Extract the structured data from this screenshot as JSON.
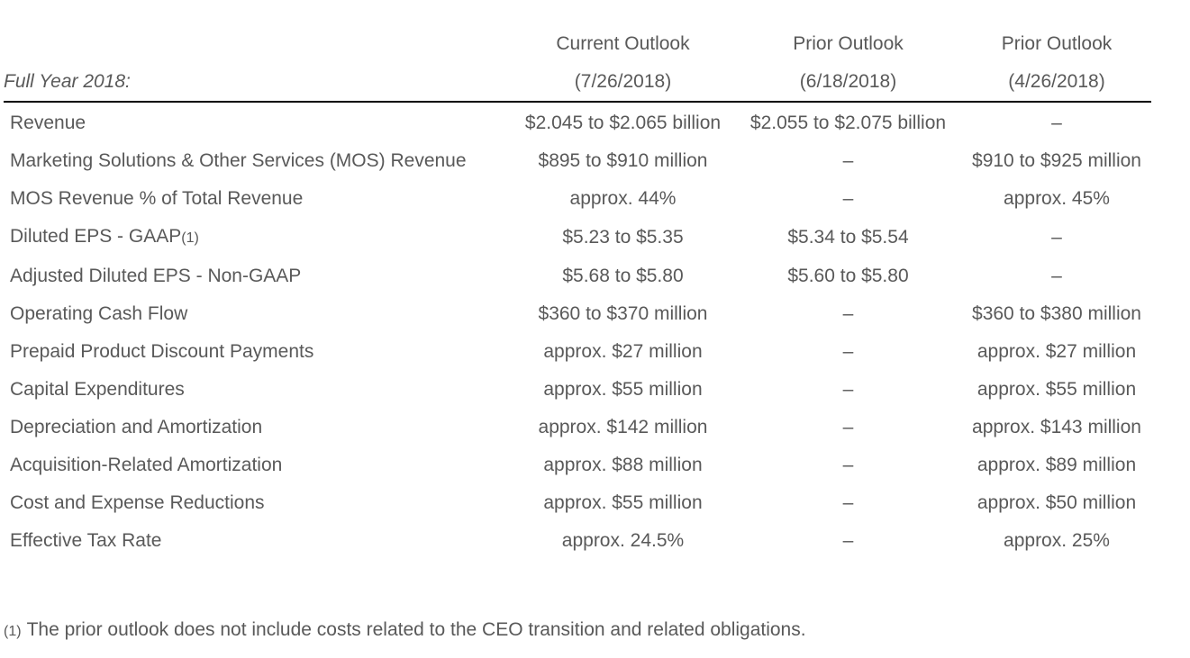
{
  "table": {
    "label_header": "Full Year 2018:",
    "columns": [
      {
        "line1": "Current Outlook",
        "line2": "(7/26/2018)"
      },
      {
        "line1": "Prior Outlook",
        "line2": "(6/18/2018)"
      },
      {
        "line1": "Prior Outlook",
        "line2": "(4/26/2018)"
      }
    ],
    "rows": [
      {
        "label": "Revenue",
        "note": "",
        "values": [
          "$2.045 to $2.065 billion",
          "$2.055 to $2.075 billion",
          "–"
        ]
      },
      {
        "label": "Marketing Solutions & Other Services (MOS) Revenue",
        "note": "",
        "values": [
          "$895 to $910 million",
          "–",
          "$910 to $925 million"
        ]
      },
      {
        "label": "MOS Revenue % of Total Revenue",
        "note": "",
        "values": [
          "approx. 44%",
          "–",
          "approx. 45%"
        ]
      },
      {
        "label": "Diluted EPS - GAAP",
        "note": "(1)",
        "values": [
          "$5.23 to $5.35",
          "$5.34 to $5.54",
          "–"
        ]
      },
      {
        "label": "Adjusted Diluted EPS - Non-GAAP",
        "note": "",
        "values": [
          "$5.68 to $5.80",
          "$5.60 to $5.80",
          "–"
        ]
      },
      {
        "label": "Operating Cash Flow",
        "note": "",
        "values": [
          "$360 to $370 million",
          "–",
          "$360 to $380 million"
        ]
      },
      {
        "label": "Prepaid Product Discount Payments",
        "note": "",
        "values": [
          "approx. $27 million",
          "–",
          "approx. $27 million"
        ]
      },
      {
        "label": "Capital Expenditures",
        "note": "",
        "values": [
          "approx. $55 million",
          "–",
          "approx. $55 million"
        ]
      },
      {
        "label": "Depreciation and Amortization",
        "note": "",
        "values": [
          "approx. $142 million",
          "–",
          "approx. $143 million"
        ]
      },
      {
        "label": "Acquisition-Related Amortization",
        "note": "",
        "values": [
          "approx. $88 million",
          "–",
          "approx. $89 million"
        ]
      },
      {
        "label": "Cost and Expense Reductions",
        "note": "",
        "values": [
          "approx. $55 million",
          "–",
          "approx. $50 million"
        ]
      },
      {
        "label": "Effective Tax Rate",
        "note": "",
        "values": [
          "approx. 24.5%",
          "–",
          "approx. 25%"
        ]
      }
    ]
  },
  "footnote": {
    "mark": "(1)",
    "text": "The prior outlook does not include costs related to the CEO transition and related obligations."
  }
}
